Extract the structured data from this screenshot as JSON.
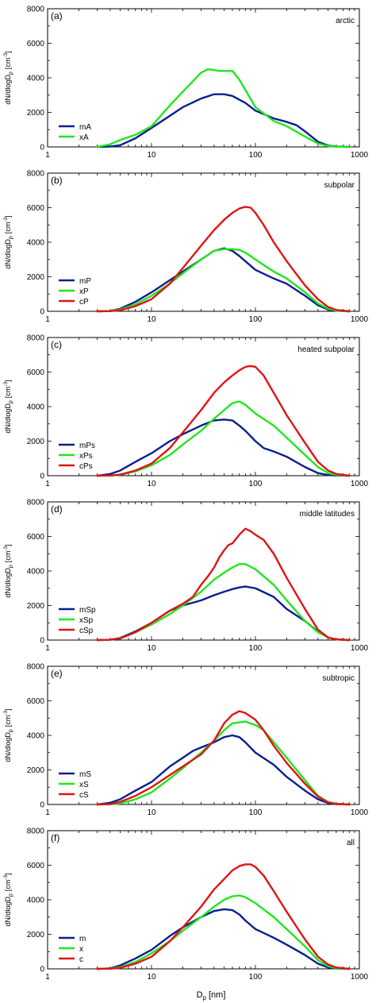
{
  "figure": {
    "xlabel": "D",
    "xlabel_sub": "p",
    "xlabel_unit": "[nm]",
    "ylabel": "dN/dlogD",
    "ylabel_sub": "p",
    "ylabel_unit": "[cm",
    "ylabel_exp": "-3",
    "ylabel_close": "]"
  },
  "chart_data": [
    {
      "type": "line",
      "panel_label": "(a)",
      "title": "arctic",
      "xscale": "log",
      "xlim": [
        1,
        1000
      ],
      "ylim": [
        0,
        8000
      ],
      "xticks": [
        1,
        10,
        100,
        1000
      ],
      "xtick_labels": [
        "1",
        "10",
        "100",
        "1000"
      ],
      "yticks": [
        0,
        2000,
        4000,
        6000,
        8000
      ],
      "ytick_labels": [
        "0",
        "2000",
        "4000",
        "6000",
        "8000"
      ],
      "grid": false,
      "legend_position": "bottom-left",
      "series": [
        {
          "name": "mA",
          "color": "#0a1f8f",
          "x": [
            3,
            4,
            5,
            7,
            10,
            15,
            20,
            30,
            40,
            50,
            60,
            80,
            100,
            150,
            200,
            250,
            300,
            400,
            500,
            600,
            800
          ],
          "y": [
            0,
            20,
            100,
            500,
            1100,
            1800,
            2300,
            2800,
            3050,
            3050,
            2950,
            2550,
            2100,
            1650,
            1450,
            1250,
            900,
            300,
            80,
            20,
            0
          ]
        },
        {
          "name": "xA",
          "color": "#22e61c",
          "x": [
            3,
            4,
            5,
            7,
            10,
            15,
            20,
            25,
            30,
            35,
            40,
            45,
            50,
            60,
            70,
            80,
            100,
            150,
            200,
            300,
            400,
            500,
            600,
            800
          ],
          "y": [
            0,
            150,
            400,
            700,
            1200,
            2400,
            3200,
            3800,
            4300,
            4500,
            4450,
            4400,
            4400,
            4400,
            3900,
            3300,
            2300,
            1500,
            1200,
            600,
            200,
            50,
            10,
            0
          ]
        }
      ]
    },
    {
      "type": "line",
      "panel_label": "(b)",
      "title": "subpolar",
      "xscale": "log",
      "xlim": [
        1,
        1000
      ],
      "ylim": [
        0,
        8000
      ],
      "xticks": [
        1,
        10,
        100,
        1000
      ],
      "xtick_labels": [
        "1",
        "10",
        "100",
        "1000"
      ],
      "yticks": [
        0,
        2000,
        4000,
        6000,
        8000
      ],
      "ytick_labels": [
        "0",
        "2000",
        "4000",
        "6000",
        "8000"
      ],
      "grid": false,
      "legend_position": "bottom-left",
      "series": [
        {
          "name": "mP",
          "color": "#0a1f8f",
          "x": [
            3,
            4,
            5,
            7,
            10,
            15,
            20,
            30,
            40,
            50,
            60,
            70,
            80,
            100,
            150,
            200,
            300,
            400,
            500,
            600,
            800
          ],
          "y": [
            0,
            20,
            150,
            550,
            1100,
            1800,
            2300,
            3000,
            3500,
            3650,
            3500,
            3200,
            2900,
            2400,
            1900,
            1600,
            900,
            350,
            100,
            30,
            0
          ]
        },
        {
          "name": "xP",
          "color": "#22e61c",
          "x": [
            3,
            4,
            5,
            7,
            10,
            15,
            20,
            30,
            40,
            50,
            60,
            70,
            80,
            100,
            150,
            200,
            300,
            400,
            500,
            600,
            800
          ],
          "y": [
            0,
            20,
            100,
            400,
            900,
            1600,
            2200,
            3000,
            3500,
            3600,
            3600,
            3550,
            3400,
            3000,
            2300,
            1900,
            1100,
            450,
            150,
            40,
            0
          ]
        },
        {
          "name": "cP",
          "color": "#e01414",
          "x": [
            3,
            4,
            5,
            7,
            10,
            15,
            20,
            30,
            40,
            50,
            60,
            70,
            80,
            90,
            100,
            120,
            150,
            200,
            300,
            400,
            500,
            600,
            800
          ],
          "y": [
            0,
            10,
            60,
            300,
            700,
            1600,
            2500,
            3800,
            4700,
            5300,
            5700,
            5950,
            6050,
            6000,
            5700,
            5000,
            4000,
            2900,
            1500,
            700,
            250,
            80,
            0
          ]
        }
      ]
    },
    {
      "type": "line",
      "panel_label": "(c)",
      "title": "heated subpolar",
      "xscale": "log",
      "xlim": [
        1,
        1000
      ],
      "ylim": [
        0,
        8000
      ],
      "xticks": [
        1,
        10,
        100,
        1000
      ],
      "xtick_labels": [
        "1",
        "10",
        "100",
        "1000"
      ],
      "yticks": [
        0,
        2000,
        4000,
        6000,
        8000
      ],
      "ytick_labels": [
        "0",
        "2000",
        "4000",
        "6000",
        "8000"
      ],
      "grid": false,
      "legend_position": "bottom-left",
      "series": [
        {
          "name": "mPs",
          "color": "#0a1f8f",
          "x": [
            3,
            4,
            5,
            7,
            10,
            15,
            20,
            30,
            40,
            50,
            60,
            70,
            80,
            100,
            120,
            150,
            200,
            300,
            400,
            500,
            600,
            800
          ],
          "y": [
            0,
            100,
            300,
            800,
            1300,
            2000,
            2400,
            2900,
            3200,
            3250,
            3200,
            2900,
            2600,
            2000,
            1600,
            1400,
            1100,
            500,
            150,
            40,
            10,
            0
          ]
        },
        {
          "name": "xPs",
          "color": "#22e61c",
          "x": [
            3,
            4,
            5,
            7,
            10,
            15,
            20,
            30,
            40,
            50,
            60,
            70,
            80,
            100,
            150,
            200,
            300,
            400,
            500,
            600,
            800
          ],
          "y": [
            0,
            10,
            50,
            250,
            600,
            1200,
            1800,
            2600,
            3300,
            3800,
            4200,
            4300,
            4100,
            3600,
            2900,
            2200,
            1200,
            500,
            150,
            40,
            0
          ]
        },
        {
          "name": "cPs",
          "color": "#e01414",
          "x": [
            3,
            4,
            5,
            7,
            10,
            15,
            20,
            30,
            40,
            50,
            60,
            70,
            80,
            90,
            100,
            120,
            150,
            200,
            300,
            400,
            500,
            600,
            800
          ],
          "y": [
            0,
            10,
            60,
            300,
            700,
            1600,
            2500,
            3800,
            4800,
            5400,
            5800,
            6100,
            6300,
            6350,
            6300,
            5800,
            4800,
            3500,
            1900,
            800,
            300,
            100,
            0
          ]
        }
      ]
    },
    {
      "type": "line",
      "panel_label": "(d)",
      "title": "middle latitudes",
      "xscale": "log",
      "xlim": [
        1,
        1000
      ],
      "ylim": [
        0,
        8000
      ],
      "xticks": [
        1,
        10,
        100,
        1000
      ],
      "xtick_labels": [
        "1",
        "10",
        "100",
        "1000"
      ],
      "yticks": [
        0,
        2000,
        4000,
        6000,
        8000
      ],
      "ytick_labels": [
        "0",
        "2000",
        "4000",
        "6000",
        "8000"
      ],
      "grid": false,
      "legend_position": "bottom-left",
      "series": [
        {
          "name": "mSp",
          "color": "#0a1f8f",
          "x": [
            3,
            4,
            5,
            7,
            10,
            15,
            20,
            30,
            40,
            50,
            60,
            70,
            80,
            100,
            150,
            200,
            300,
            400,
            500,
            600,
            800
          ],
          "y": [
            0,
            20,
            120,
            500,
            1000,
            1700,
            2000,
            2300,
            2600,
            2800,
            2950,
            3050,
            3100,
            3000,
            2500,
            1800,
            1100,
            500,
            150,
            40,
            0
          ]
        },
        {
          "name": "xSp",
          "color": "#22e61c",
          "x": [
            3,
            4,
            5,
            7,
            10,
            15,
            20,
            30,
            40,
            50,
            60,
            70,
            80,
            100,
            150,
            200,
            300,
            400,
            500,
            600,
            800
          ],
          "y": [
            0,
            20,
            100,
            450,
            900,
            1500,
            2000,
            2800,
            3500,
            3900,
            4200,
            4400,
            4400,
            4100,
            3200,
            2300,
            1100,
            450,
            150,
            40,
            0
          ]
        },
        {
          "name": "cSp",
          "color": "#e01414",
          "x": [
            3,
            4,
            5,
            7,
            10,
            15,
            20,
            25,
            30,
            35,
            40,
            45,
            50,
            55,
            60,
            70,
            80,
            90,
            100,
            120,
            150,
            200,
            300,
            400,
            500,
            600,
            800
          ],
          "y": [
            0,
            20,
            100,
            450,
            1000,
            1700,
            2100,
            2500,
            3200,
            3700,
            4200,
            4800,
            5200,
            5500,
            5600,
            6100,
            6450,
            6300,
            6100,
            5800,
            5000,
            3600,
            1800,
            600,
            150,
            40,
            0
          ]
        }
      ]
    },
    {
      "type": "line",
      "panel_label": "(e)",
      "title": "subtropic",
      "xscale": "log",
      "xlim": [
        1,
        1000
      ],
      "ylim": [
        0,
        8000
      ],
      "xticks": [
        1,
        10,
        100,
        1000
      ],
      "xtick_labels": [
        "1",
        "10",
        "100",
        "1000"
      ],
      "yticks": [
        0,
        2000,
        4000,
        6000,
        8000
      ],
      "ytick_labels": [
        "0",
        "2000",
        "4000",
        "6000",
        "8000"
      ],
      "grid": false,
      "legend_position": "bottom-left",
      "series": [
        {
          "name": "mS",
          "color": "#0a1f8f",
          "x": [
            3,
            4,
            5,
            7,
            10,
            15,
            20,
            25,
            30,
            40,
            50,
            60,
            70,
            80,
            100,
            150,
            200,
            300,
            400,
            500,
            600,
            800
          ],
          "y": [
            0,
            100,
            300,
            800,
            1300,
            2200,
            2700,
            3100,
            3300,
            3600,
            3900,
            4000,
            3900,
            3600,
            3000,
            2300,
            1600,
            800,
            300,
            80,
            20,
            0
          ]
        },
        {
          "name": "xS",
          "color": "#22e61c",
          "x": [
            3,
            4,
            5,
            7,
            10,
            15,
            20,
            30,
            40,
            50,
            60,
            70,
            80,
            100,
            120,
            150,
            200,
            300,
            400,
            500,
            600,
            800
          ],
          "y": [
            0,
            10,
            60,
            300,
            700,
            1500,
            2100,
            3000,
            3700,
            4300,
            4700,
            4750,
            4800,
            4600,
            4300,
            3600,
            2700,
            1400,
            500,
            150,
            40,
            0
          ]
        },
        {
          "name": "cS",
          "color": "#e01414",
          "x": [
            3,
            4,
            5,
            7,
            10,
            15,
            20,
            30,
            40,
            50,
            60,
            70,
            80,
            100,
            120,
            150,
            200,
            300,
            400,
            500,
            600,
            800
          ],
          "y": [
            0,
            20,
            150,
            500,
            1000,
            1700,
            2200,
            2900,
            3700,
            4700,
            5200,
            5400,
            5300,
            4900,
            4300,
            3400,
            2400,
            1200,
            450,
            120,
            30,
            0
          ]
        }
      ]
    },
    {
      "type": "line",
      "panel_label": "(f)",
      "title": "all",
      "xscale": "log",
      "xlim": [
        1,
        1000
      ],
      "ylim": [
        0,
        8000
      ],
      "xticks": [
        1,
        10,
        100,
        1000
      ],
      "xtick_labels": [
        "1",
        "10",
        "100",
        "1000"
      ],
      "yticks": [
        0,
        2000,
        4000,
        6000,
        8000
      ],
      "ytick_labels": [
        "0",
        "2000",
        "4000",
        "6000",
        "8000"
      ],
      "grid": false,
      "legend_position": "bottom-left",
      "series": [
        {
          "name": "m",
          "color": "#0a1f8f",
          "x": [
            3,
            4,
            5,
            7,
            10,
            15,
            20,
            30,
            40,
            50,
            60,
            70,
            80,
            100,
            150,
            200,
            300,
            400,
            500,
            600,
            800
          ],
          "y": [
            0,
            30,
            200,
            600,
            1100,
            1900,
            2400,
            3000,
            3350,
            3450,
            3400,
            3150,
            2800,
            2300,
            1800,
            1400,
            800,
            300,
            80,
            20,
            0
          ]
        },
        {
          "name": "x",
          "color": "#22e61c",
          "x": [
            3,
            4,
            5,
            7,
            10,
            15,
            20,
            30,
            40,
            50,
            60,
            70,
            80,
            100,
            150,
            200,
            300,
            400,
            500,
            600,
            800
          ],
          "y": [
            0,
            20,
            100,
            400,
            900,
            1600,
            2200,
            3000,
            3600,
            4000,
            4200,
            4250,
            4150,
            3800,
            3000,
            2300,
            1300,
            500,
            150,
            40,
            0
          ]
        },
        {
          "name": "c",
          "color": "#e01414",
          "x": [
            3,
            4,
            5,
            7,
            10,
            15,
            20,
            30,
            40,
            50,
            60,
            70,
            80,
            90,
            100,
            120,
            150,
            200,
            300,
            400,
            500,
            600,
            800
          ],
          "y": [
            0,
            10,
            60,
            300,
            700,
            1600,
            2400,
            3600,
            4600,
            5200,
            5700,
            5950,
            6050,
            6050,
            5900,
            5400,
            4500,
            3300,
            1700,
            700,
            250,
            80,
            0
          ]
        }
      ]
    }
  ]
}
